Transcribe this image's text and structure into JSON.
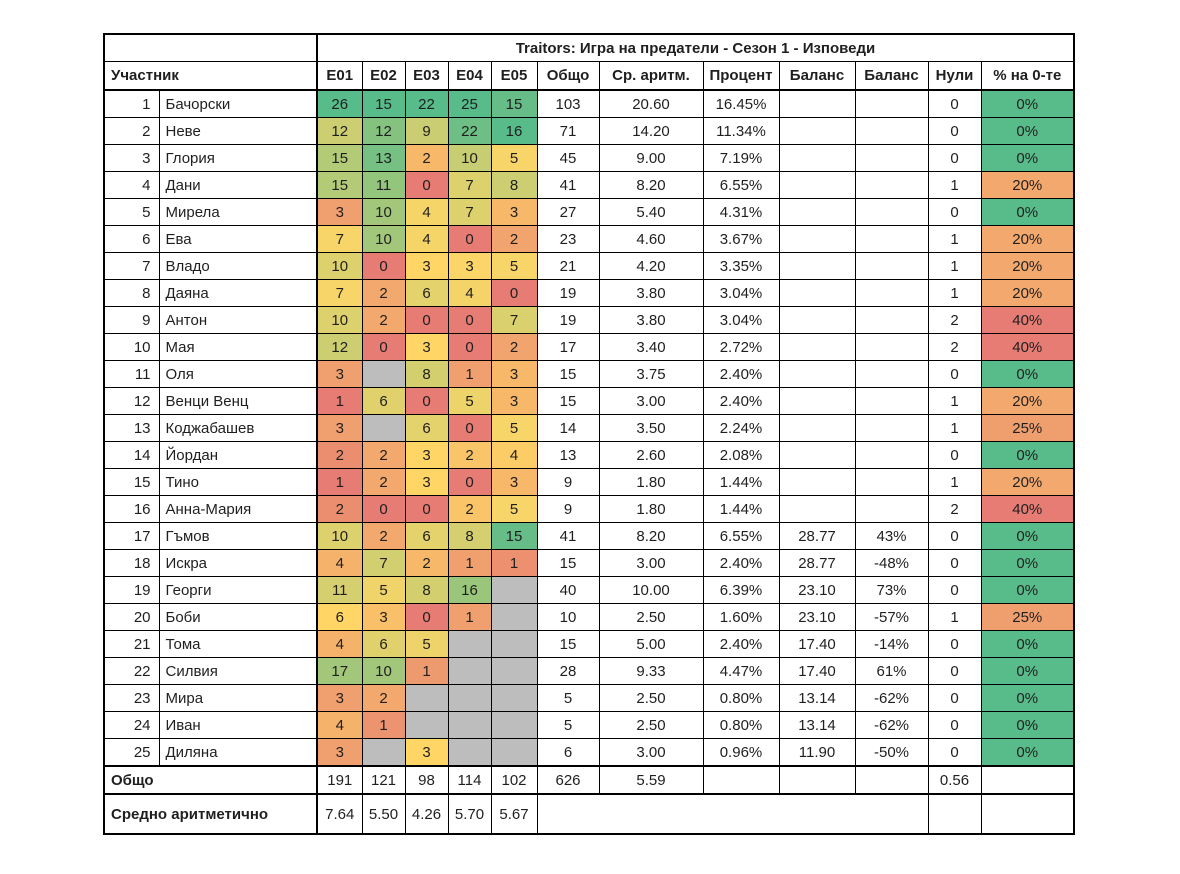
{
  "title": "Traitors: Игра на предатели - Сезон 1 - Изповеди",
  "columns": {
    "participant": "Участник",
    "episodes": [
      "E01",
      "E02",
      "E03",
      "E04",
      "E05"
    ],
    "total": "Общо",
    "average": "Ср. аритм.",
    "percent": "Процент",
    "balance1": "Баланс",
    "balance2": "Баланс",
    "zeros": "Нули",
    "zeros_pct": "% на 0-те"
  },
  "rows": [
    {
      "n": 1,
      "name": "Бачорски",
      "ep": [
        26,
        15,
        22,
        25,
        15
      ],
      "total": "103",
      "avg": "20.60",
      "pct": "16.45%",
      "bal1": "",
      "bal2": "",
      "zeros": "0",
      "zpct": "0%"
    },
    {
      "n": 2,
      "name": "Неве",
      "ep": [
        12,
        12,
        9,
        22,
        16
      ],
      "total": "71",
      "avg": "14.20",
      "pct": "11.34%",
      "bal1": "",
      "bal2": "",
      "zeros": "0",
      "zpct": "0%"
    },
    {
      "n": 3,
      "name": "Глория",
      "ep": [
        15,
        13,
        2,
        10,
        5
      ],
      "total": "45",
      "avg": "9.00",
      "pct": "7.19%",
      "bal1": "",
      "bal2": "",
      "zeros": "0",
      "zpct": "0%"
    },
    {
      "n": 4,
      "name": "Дани",
      "ep": [
        15,
        11,
        0,
        7,
        8
      ],
      "total": "41",
      "avg": "8.20",
      "pct": "6.55%",
      "bal1": "",
      "bal2": "",
      "zeros": "1",
      "zpct": "20%"
    },
    {
      "n": 5,
      "name": "Мирела",
      "ep": [
        3,
        10,
        4,
        7,
        3
      ],
      "total": "27",
      "avg": "5.40",
      "pct": "4.31%",
      "bal1": "",
      "bal2": "",
      "zeros": "0",
      "zpct": "0%"
    },
    {
      "n": 6,
      "name": "Ева",
      "ep": [
        7,
        10,
        4,
        0,
        2
      ],
      "total": "23",
      "avg": "4.60",
      "pct": "3.67%",
      "bal1": "",
      "bal2": "",
      "zeros": "1",
      "zpct": "20%"
    },
    {
      "n": 7,
      "name": "Владо",
      "ep": [
        10,
        0,
        3,
        3,
        5
      ],
      "total": "21",
      "avg": "4.20",
      "pct": "3.35%",
      "bal1": "",
      "bal2": "",
      "zeros": "1",
      "zpct": "20%"
    },
    {
      "n": 8,
      "name": "Даяна",
      "ep": [
        7,
        2,
        6,
        4,
        0
      ],
      "total": "19",
      "avg": "3.80",
      "pct": "3.04%",
      "bal1": "",
      "bal2": "",
      "zeros": "1",
      "zpct": "20%"
    },
    {
      "n": 9,
      "name": "Антон",
      "ep": [
        10,
        2,
        0,
        0,
        7
      ],
      "total": "19",
      "avg": "3.80",
      "pct": "3.04%",
      "bal1": "",
      "bal2": "",
      "zeros": "2",
      "zpct": "40%"
    },
    {
      "n": 10,
      "name": "Мая",
      "ep": [
        12,
        0,
        3,
        0,
        2
      ],
      "total": "17",
      "avg": "3.40",
      "pct": "2.72%",
      "bal1": "",
      "bal2": "",
      "zeros": "2",
      "zpct": "40%"
    },
    {
      "n": 11,
      "name": "Оля",
      "ep": [
        3,
        null,
        8,
        1,
        3
      ],
      "total": "15",
      "avg": "3.75",
      "pct": "2.40%",
      "bal1": "",
      "bal2": "",
      "zeros": "0",
      "zpct": "0%"
    },
    {
      "n": 12,
      "name": "Венци Венц",
      "ep": [
        1,
        6,
        0,
        5,
        3
      ],
      "total": "15",
      "avg": "3.00",
      "pct": "2.40%",
      "bal1": "",
      "bal2": "",
      "zeros": "1",
      "zpct": "20%"
    },
    {
      "n": 13,
      "name": "Коджабашев",
      "ep": [
        3,
        null,
        6,
        0,
        5
      ],
      "total": "14",
      "avg": "3.50",
      "pct": "2.24%",
      "bal1": "",
      "bal2": "",
      "zeros": "1",
      "zpct": "25%"
    },
    {
      "n": 14,
      "name": "Йордан",
      "ep": [
        2,
        2,
        3,
        2,
        4
      ],
      "total": "13",
      "avg": "2.60",
      "pct": "2.08%",
      "bal1": "",
      "bal2": "",
      "zeros": "0",
      "zpct": "0%"
    },
    {
      "n": 15,
      "name": "Тино",
      "ep": [
        1,
        2,
        3,
        0,
        3
      ],
      "total": "9",
      "avg": "1.80",
      "pct": "1.44%",
      "bal1": "",
      "bal2": "",
      "zeros": "1",
      "zpct": "20%"
    },
    {
      "n": 16,
      "name": "Анна-Мария",
      "ep": [
        2,
        0,
        0,
        2,
        5
      ],
      "total": "9",
      "avg": "1.80",
      "pct": "1.44%",
      "bal1": "",
      "bal2": "",
      "zeros": "2",
      "zpct": "40%"
    },
    {
      "n": 17,
      "name": "Гъмов",
      "ep": [
        10,
        2,
        6,
        8,
        15
      ],
      "total": "41",
      "avg": "8.20",
      "pct": "6.55%",
      "bal1": "28.77",
      "bal2": "43%",
      "zeros": "0",
      "zpct": "0%"
    },
    {
      "n": 18,
      "name": "Искра",
      "ep": [
        4,
        7,
        2,
        1,
        1
      ],
      "total": "15",
      "avg": "3.00",
      "pct": "2.40%",
      "bal1": "28.77",
      "bal2": "-48%",
      "zeros": "0",
      "zpct": "0%"
    },
    {
      "n": 19,
      "name": "Георги",
      "ep": [
        11,
        5,
        8,
        16,
        null
      ],
      "total": "40",
      "avg": "10.00",
      "pct": "6.39%",
      "bal1": "23.10",
      "bal2": "73%",
      "zeros": "0",
      "zpct": "0%"
    },
    {
      "n": 20,
      "name": "Боби",
      "ep": [
        6,
        3,
        0,
        1,
        null
      ],
      "total": "10",
      "avg": "2.50",
      "pct": "1.60%",
      "bal1": "23.10",
      "bal2": "-57%",
      "zeros": "1",
      "zpct": "25%"
    },
    {
      "n": 21,
      "name": "Тома",
      "ep": [
        4,
        6,
        5,
        null,
        null
      ],
      "total": "15",
      "avg": "5.00",
      "pct": "2.40%",
      "bal1": "17.40",
      "bal2": "-14%",
      "zeros": "0",
      "zpct": "0%"
    },
    {
      "n": 22,
      "name": "Силвия",
      "ep": [
        17,
        10,
        1,
        null,
        null
      ],
      "total": "28",
      "avg": "9.33",
      "pct": "4.47%",
      "bal1": "17.40",
      "bal2": "61%",
      "zeros": "0",
      "zpct": "0%"
    },
    {
      "n": 23,
      "name": "Мира",
      "ep": [
        3,
        2,
        null,
        null,
        null
      ],
      "total": "5",
      "avg": "2.50",
      "pct": "0.80%",
      "bal1": "13.14",
      "bal2": "-62%",
      "zeros": "0",
      "zpct": "0%"
    },
    {
      "n": 24,
      "name": "Иван",
      "ep": [
        4,
        1,
        null,
        null,
        null
      ],
      "total": "5",
      "avg": "2.50",
      "pct": "0.80%",
      "bal1": "13.14",
      "bal2": "-62%",
      "zeros": "0",
      "zpct": "0%"
    },
    {
      "n": 25,
      "name": "Диляна",
      "ep": [
        3,
        null,
        3,
        null,
        null
      ],
      "total": "6",
      "avg": "3.00",
      "pct": "0.96%",
      "bal1": "11.90",
      "bal2": "-50%",
      "zeros": "0",
      "zpct": "0%"
    }
  ],
  "footer": {
    "total_label": "Общо",
    "total_ep": [
      "191",
      "121",
      "98",
      "114",
      "102"
    ],
    "total_total": "626",
    "total_avg": "5.59",
    "total_zeros": "0.56",
    "mean_label": "Средно аритметично",
    "mean_ep": [
      "7.64",
      "5.50",
      "4.26",
      "5.70",
      "5.67"
    ]
  },
  "colors": {
    "scale_red": "#E67C73",
    "scale_yellow": "#FFD666",
    "scale_green": "#57BB8A",
    "missing_gray": "#BDBDBD",
    "grid": "#000000",
    "background": "#FFFFFF"
  }
}
